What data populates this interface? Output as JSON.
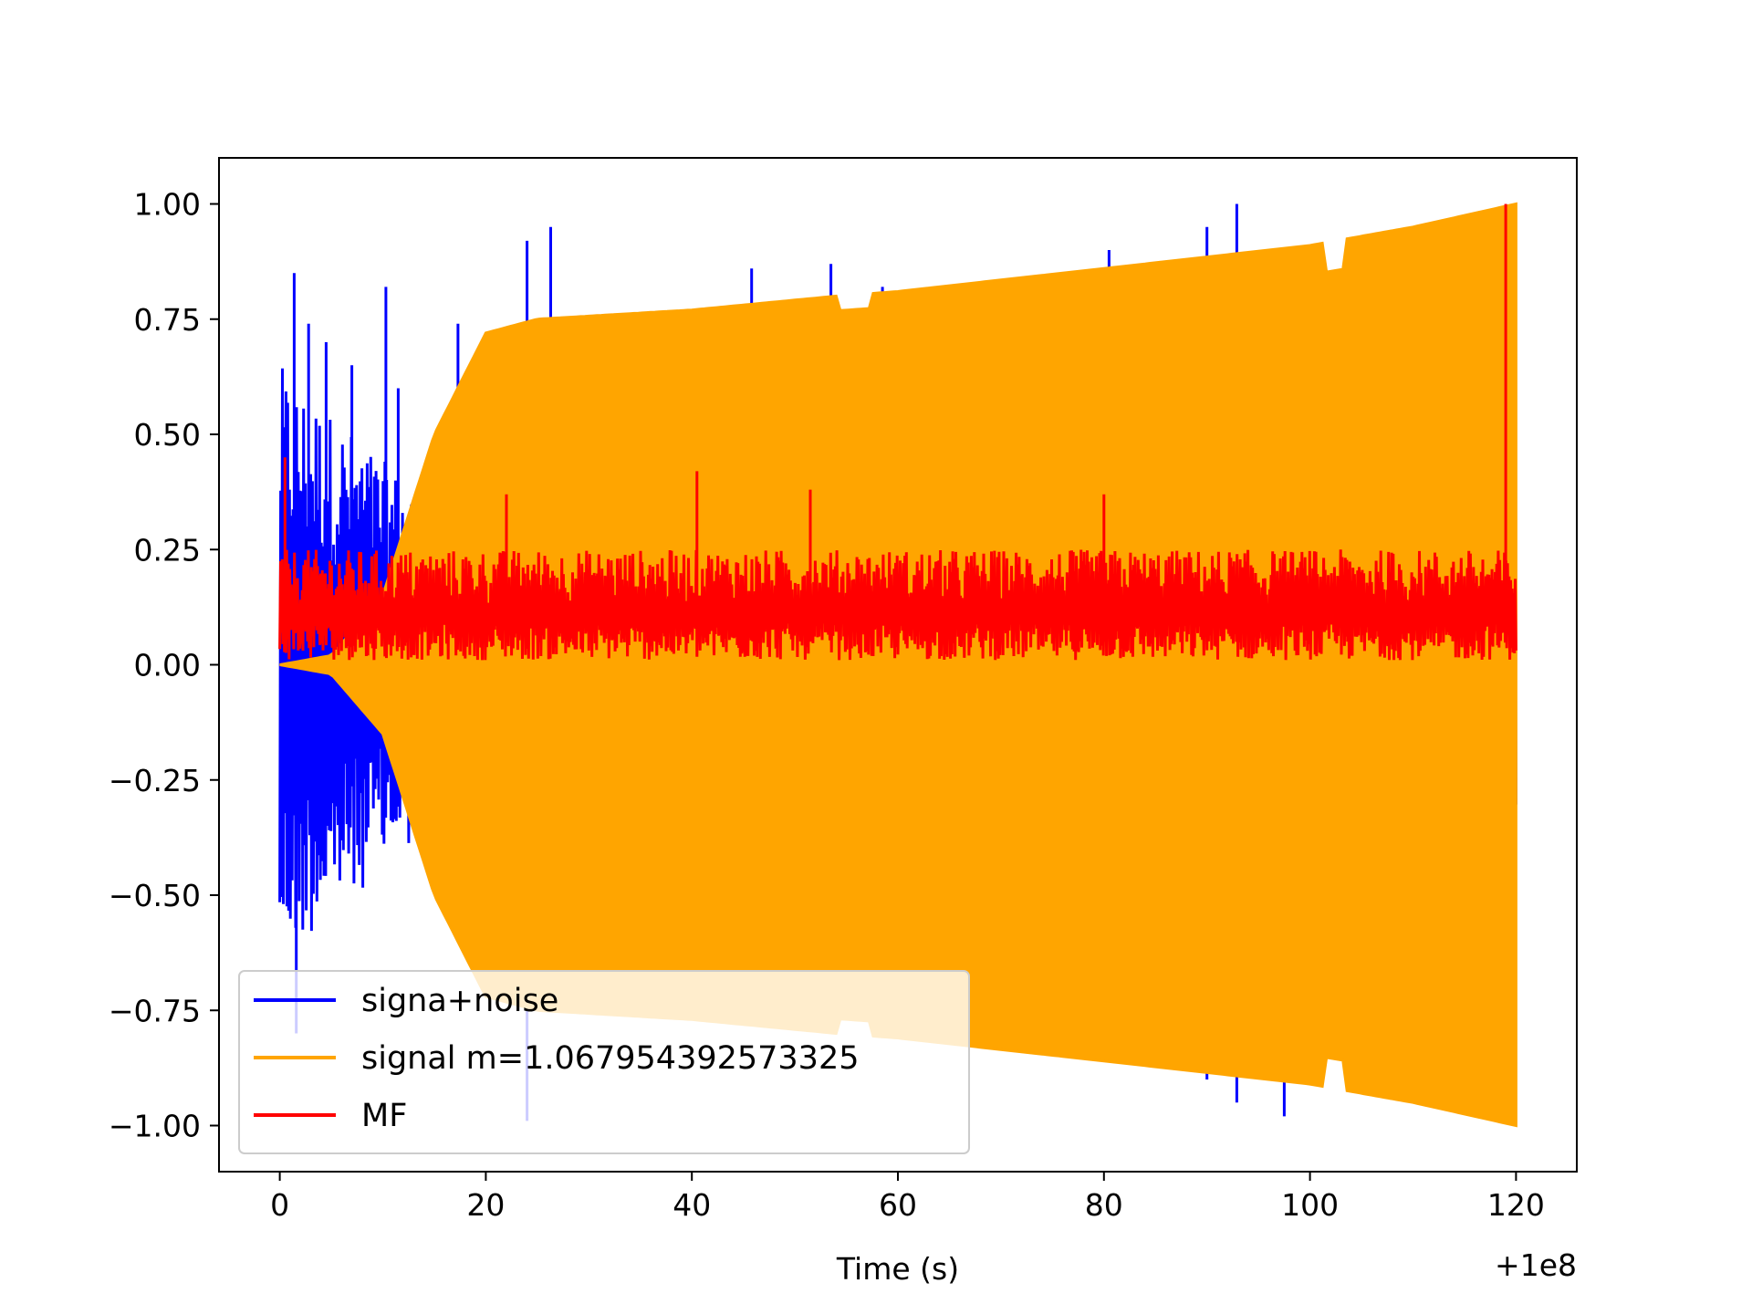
{
  "chart_data": {
    "type": "line",
    "title": "",
    "xlabel": "Time (s)",
    "ylabel": "",
    "x_offset_label": "+1e8",
    "xlim": [
      -5.9,
      125.9
    ],
    "ylim": [
      -1.1,
      1.1
    ],
    "x_ticks": [
      0,
      20,
      40,
      60,
      80,
      100,
      120
    ],
    "x_tick_labels": [
      "0",
      "20",
      "40",
      "60",
      "80",
      "100",
      "120"
    ],
    "y_ticks": [
      1.0,
      0.75,
      0.5,
      0.25,
      0.0,
      -0.25,
      -0.5,
      -0.75,
      -1.0
    ],
    "y_tick_labels": [
      "1.00",
      "0.75",
      "0.50",
      "0.25",
      "0.00",
      "−0.25",
      "−0.50",
      "−0.75",
      "−1.00"
    ],
    "grid": false,
    "legend_position": "lower-left",
    "series": [
      {
        "name": "signa+noise",
        "color": "#0000ff",
        "description": "noisy strain, oscillating with envelope",
        "spikes": [
          {
            "x": 0.2,
            "y": 0.32
          },
          {
            "x": 1.4,
            "y": 0.85
          },
          {
            "x": 1.6,
            "y": -0.8
          },
          {
            "x": 2.8,
            "y": 0.74
          },
          {
            "x": 4.5,
            "y": 0.7
          },
          {
            "x": 7.0,
            "y": 0.65
          },
          {
            "x": 10.3,
            "y": 0.82
          },
          {
            "x": 11.5,
            "y": 0.6
          },
          {
            "x": 17.3,
            "y": 0.74
          },
          {
            "x": 24.0,
            "y": 0.92
          },
          {
            "x": 24.0,
            "y": -0.99
          },
          {
            "x": 26.3,
            "y": 0.95
          },
          {
            "x": 32.2,
            "y": 0.76
          },
          {
            "x": 45.8,
            "y": 0.86
          },
          {
            "x": 53.5,
            "y": 0.87
          },
          {
            "x": 58.5,
            "y": 0.82
          },
          {
            "x": 80.5,
            "y": 0.9
          },
          {
            "x": 90.0,
            "y": 0.95
          },
          {
            "x": 90.0,
            "y": -0.9
          },
          {
            "x": 92.9,
            "y": 1.0
          },
          {
            "x": 92.9,
            "y": -0.95
          },
          {
            "x": 97.5,
            "y": -0.98
          }
        ]
      },
      {
        "name": "signal m=1.067954392573325",
        "color": "#ffa500",
        "description": "chirp signal with growing envelope",
        "envelope": [
          {
            "x": 0,
            "y": 0.0
          },
          {
            "x": 5,
            "y": 0.02
          },
          {
            "x": 10,
            "y": 0.15
          },
          {
            "x": 15,
            "y": 0.5
          },
          {
            "x": 20,
            "y": 0.72
          },
          {
            "x": 25,
            "y": 0.75
          },
          {
            "x": 40,
            "y": 0.77
          },
          {
            "x": 54,
            "y": 0.8
          },
          {
            "x": 60,
            "y": 0.81
          },
          {
            "x": 80,
            "y": 0.86
          },
          {
            "x": 100,
            "y": 0.91
          },
          {
            "x": 110,
            "y": 0.95
          },
          {
            "x": 120,
            "y": 1.0
          }
        ]
      },
      {
        "name": "MF",
        "color": "#ff0000",
        "description": "matched filter output, mostly 0.0 to 0.25 with a peak near the end",
        "peaks": [
          {
            "x": 0.5,
            "y": 0.45
          },
          {
            "x": 22,
            "y": 0.37
          },
          {
            "x": 40.5,
            "y": 0.42
          },
          {
            "x": 51.5,
            "y": 0.38
          },
          {
            "x": 80,
            "y": 0.37
          },
          {
            "x": 119.0,
            "y": 1.0
          }
        ]
      }
    ]
  }
}
